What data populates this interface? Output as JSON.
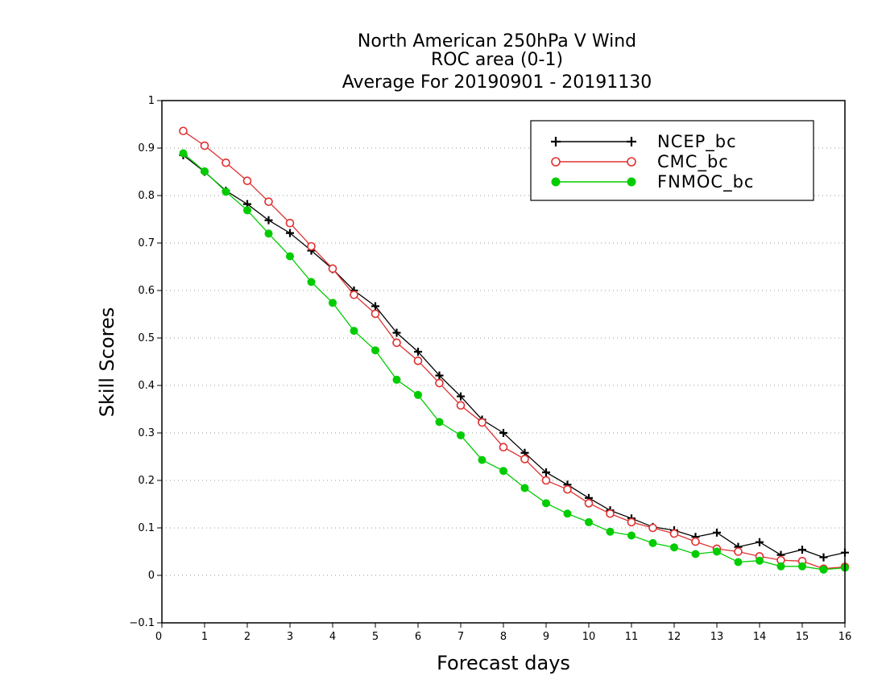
{
  "chart_data": {
    "type": "line",
    "title": [
      "North American 250hPa V Wind",
      "ROC area (0-1)",
      "Average For 20190901 - 20191130"
    ],
    "xlabel": "Forecast days",
    "ylabel": "Skill Scores",
    "xlim": [
      0,
      16
    ],
    "ylim": [
      -0.1,
      1
    ],
    "xticks": [
      0,
      1,
      2,
      3,
      4,
      5,
      6,
      7,
      8,
      9,
      10,
      11,
      12,
      13,
      14,
      15,
      16
    ],
    "yticks": [
      -0.1,
      0,
      0.1,
      0.2,
      0.3,
      0.4,
      0.5,
      0.6,
      0.7,
      0.8,
      0.9,
      1
    ],
    "xtick_labels": [
      "0",
      "1",
      "2",
      "3",
      "4",
      "5",
      "6",
      "7",
      "8",
      "9",
      "10",
      "11",
      "12",
      "13",
      "14",
      "15",
      "16"
    ],
    "ytick_labels": [
      "−0.1",
      "0",
      "0.1",
      "0.2",
      "0.3",
      "0.4",
      "0.5",
      "0.6",
      "0.7",
      "0.8",
      "0.9",
      "1"
    ],
    "grid": "horizontal dotted",
    "legend_position": "top-right",
    "x": [
      0.5,
      1,
      1.5,
      2,
      2.5,
      3,
      3.5,
      4,
      4.5,
      5,
      5.5,
      6,
      6.5,
      7,
      7.5,
      8,
      8.5,
      9,
      9.5,
      10,
      10.5,
      11,
      11.5,
      12,
      12.5,
      13,
      13.5,
      14,
      14.5,
      15,
      15.5,
      16
    ],
    "series": [
      {
        "name": "NCEP_bc",
        "color": "#000000",
        "marker": "plus",
        "values": [
          0.885,
          0.85,
          0.81,
          0.782,
          0.748,
          0.721,
          0.684,
          0.645,
          0.6,
          0.567,
          0.511,
          0.471,
          0.421,
          0.377,
          0.328,
          0.3,
          0.258,
          0.217,
          0.191,
          0.163,
          0.137,
          0.12,
          0.102,
          0.095,
          0.081,
          0.09,
          0.06,
          0.07,
          0.043,
          0.054,
          0.038,
          0.048
        ]
      },
      {
        "name": "CMC_bc",
        "color": "#e03030",
        "marker": "open-circle",
        "values": [
          0.936,
          0.905,
          0.869,
          0.831,
          0.787,
          0.742,
          0.693,
          0.646,
          0.591,
          0.551,
          0.49,
          0.452,
          0.405,
          0.358,
          0.322,
          0.27,
          0.245,
          0.2,
          0.181,
          0.152,
          0.13,
          0.112,
          0.1,
          0.088,
          0.071,
          0.056,
          0.05,
          0.04,
          0.032,
          0.03,
          0.014,
          0.018
        ]
      },
      {
        "name": "FNMOC_bc",
        "color": "#00cc00",
        "marker": "filled-circle",
        "values": [
          0.889,
          0.851,
          0.808,
          0.769,
          0.72,
          0.672,
          0.618,
          0.574,
          0.515,
          0.474,
          0.412,
          0.38,
          0.323,
          0.295,
          0.243,
          0.22,
          0.184,
          0.152,
          0.13,
          0.112,
          0.092,
          0.084,
          0.068,
          0.059,
          0.045,
          0.05,
          0.028,
          0.031,
          0.019,
          0.019,
          0.012,
          0.016
        ]
      }
    ]
  }
}
